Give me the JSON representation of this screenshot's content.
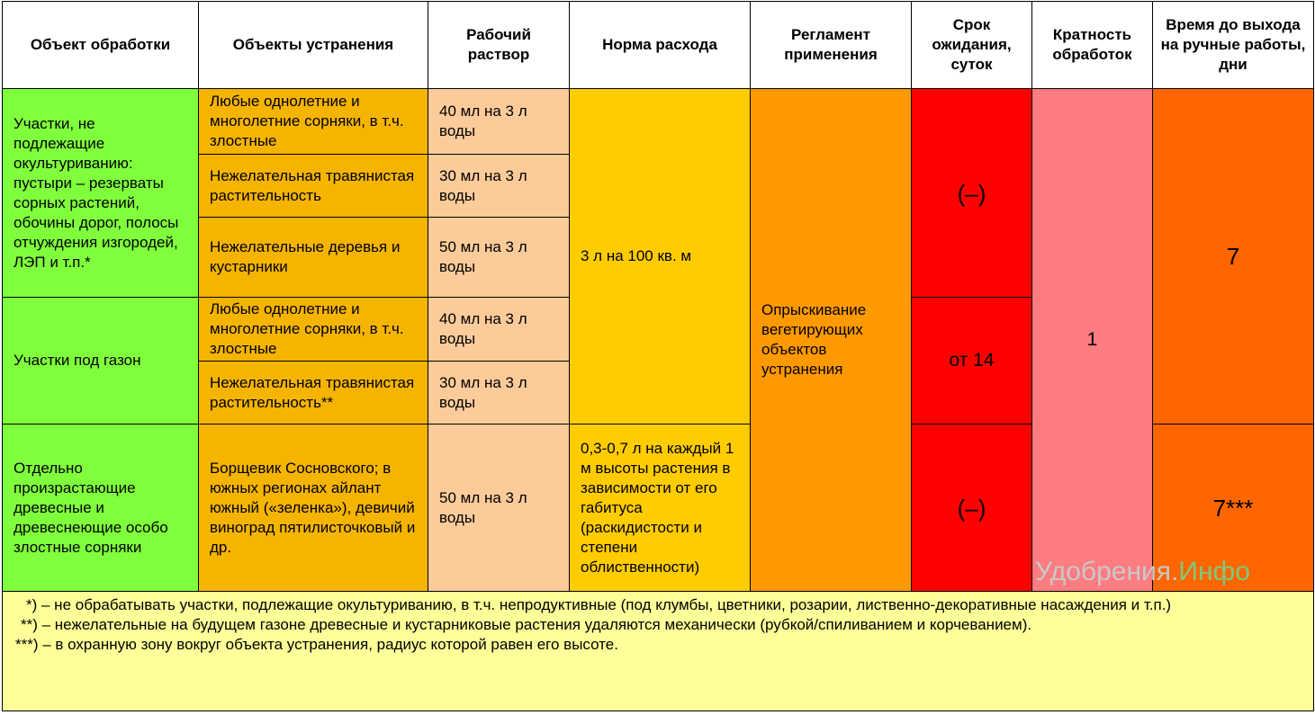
{
  "table": {
    "header": [
      "Объект обработки",
      "Объекты устранения",
      "Рабочий раствор",
      "Норма расхода",
      "Регламент применения",
      "Срок ожидания, суток",
      "Кратность обработок",
      "Время до выхода на ручные работы, дни"
    ],
    "rows": [
      [
        "Участки, не подлежащие окультуриванию: пустыри – резерваты сорных растений, обочины дорог, полосы отчуждения изгородей, ЛЭП и т.п.*",
        "Любые однолетние и многолетние сорняки, в т.ч. злостные",
        "40 мл на 3 л воды",
        "3 л на 100 кв. м",
        "Опрыскивание вегетирующих объектов устранения",
        "(–)",
        "1",
        "7"
      ],
      [
        "Нежелательная травянистая растительность",
        "30 мл на 3 л воды"
      ],
      [
        "Нежелательные деревья и кустарники",
        "50 мл на 3 л воды"
      ],
      [
        "Участки под газон",
        "Любые однолетние и многолетние сорняки, в т.ч. злостные",
        "40 мл на 3 л воды",
        "от 14"
      ],
      [
        "Нежелательная травянистая растительность**",
        "30 мл на 3 л воды"
      ],
      [
        "Отдельно произрастающие древесные и древеснеющие особо злостные сорняки",
        "Борщевик Сосновского; в южных регионах айлант южный («зеленка»), девичий виноград пятилисточковый и др.",
        "50 мл на 3 л воды",
        "0,3-0,7 л на каждый 1 м высоты растения в зависимости от его габитуса (раскидистости и степени облиственности)",
        "(–)",
        "7***"
      ]
    ],
    "footnotes": [
      "*) – не обрабатывать участки, подлежащие окультуриванию, в т.ч. непродуктивные (под клумбы, цветники, розарии, лиственно-декоративные насаждения и т.п.)",
      "**) – нежелательные на будущем газоне древесные и кустарниковые растения удаляются механически (рубкой/спиливанием и корчеванием).",
      "***) – в охранную зону вокруг объекта устранения, радиус которой равен его высоте."
    ],
    "watermark": [
      "Удобрения.",
      "Инфо"
    ]
  }
}
